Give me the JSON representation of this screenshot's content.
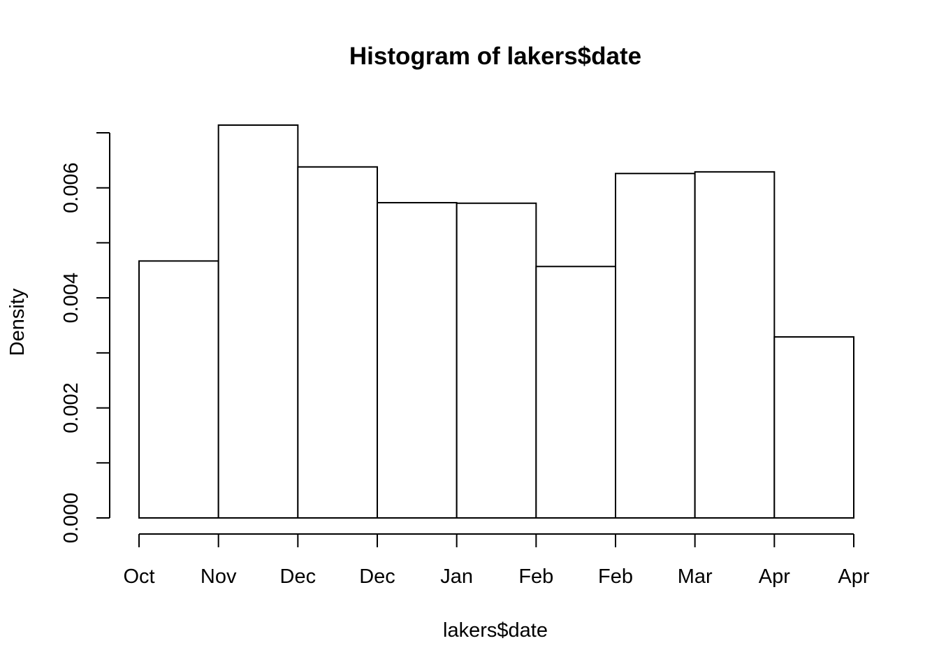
{
  "chart_data": {
    "type": "bar",
    "histogram": true,
    "title": "Histogram of lakers$date",
    "xlabel": "lakers$date",
    "ylabel": "Density",
    "x_tick_labels": [
      "Oct",
      "Nov",
      "Dec",
      "Dec",
      "Jan",
      "Feb",
      "Feb",
      "Mar",
      "Apr",
      "Apr"
    ],
    "y_ticks": [
      0.0,
      0.001,
      0.002,
      0.003,
      0.004,
      0.005,
      0.006,
      0.007
    ],
    "y_tick_labels": [
      "0.000",
      "0.002",
      "0.004",
      "0.006"
    ],
    "y_tick_label_values": [
      0.0,
      0.002,
      0.004,
      0.006
    ],
    "ylim": [
      0,
      0.00713
    ],
    "values": [
      0.00467,
      0.00714,
      0.00638,
      0.00573,
      0.00572,
      0.00457,
      0.00626,
      0.00629,
      0.00329
    ],
    "colors": {
      "bar_fill": "#ffffff",
      "stroke": "#000000"
    },
    "grid": false
  }
}
